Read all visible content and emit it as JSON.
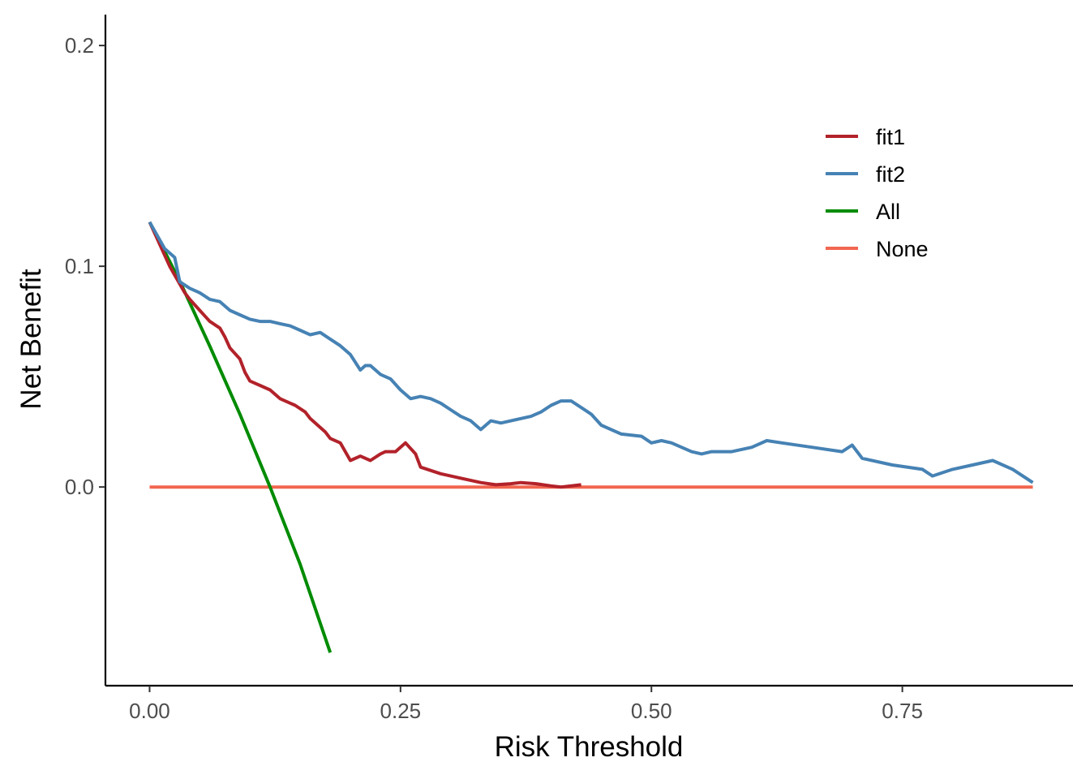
{
  "chart_data": {
    "type": "line",
    "title": "",
    "xlabel": "Risk Threshold",
    "ylabel": "Net Benefit",
    "xlim": [
      -0.044,
      0.92
    ],
    "ylim": [
      -0.09,
      0.214
    ],
    "x_ticks": [
      0.0,
      0.25,
      0.5,
      0.75
    ],
    "x_tick_labels": [
      "0.00",
      "0.25",
      "0.50",
      "0.75"
    ],
    "y_ticks": [
      0.0,
      0.1,
      0.2
    ],
    "y_tick_labels": [
      "0.0",
      "0.1",
      "0.2"
    ],
    "grid": false,
    "legend_position": "top-right",
    "colors": {
      "fit1": "#b2222a",
      "fit2": "#4682b4",
      "All": "#008b00",
      "None": "#f26650"
    },
    "series": [
      {
        "name": "fit1",
        "x": [
          0.0,
          0.02,
          0.035,
          0.04,
          0.05,
          0.06,
          0.07,
          0.075,
          0.08,
          0.09,
          0.095,
          0.1,
          0.11,
          0.12,
          0.13,
          0.14,
          0.145,
          0.155,
          0.16,
          0.175,
          0.18,
          0.19,
          0.2,
          0.21,
          0.22,
          0.23,
          0.235,
          0.245,
          0.255,
          0.265,
          0.27,
          0.29,
          0.31,
          0.33,
          0.345,
          0.36,
          0.37,
          0.385,
          0.4,
          0.41,
          0.43
        ],
        "y": [
          0.12,
          0.1,
          0.088,
          0.085,
          0.08,
          0.075,
          0.072,
          0.068,
          0.063,
          0.058,
          0.052,
          0.048,
          0.046,
          0.044,
          0.04,
          0.038,
          0.037,
          0.034,
          0.031,
          0.025,
          0.022,
          0.02,
          0.012,
          0.014,
          0.012,
          0.015,
          0.016,
          0.016,
          0.02,
          0.015,
          0.009,
          0.006,
          0.004,
          0.002,
          0.001,
          0.0015,
          0.002,
          0.0015,
          0.0005,
          0.0,
          0.001
        ]
      },
      {
        "name": "fit2",
        "x": [
          0.0,
          0.015,
          0.025,
          0.03,
          0.04,
          0.05,
          0.06,
          0.07,
          0.08,
          0.09,
          0.1,
          0.11,
          0.12,
          0.13,
          0.14,
          0.15,
          0.16,
          0.17,
          0.18,
          0.19,
          0.2,
          0.21,
          0.215,
          0.22,
          0.23,
          0.24,
          0.25,
          0.26,
          0.27,
          0.28,
          0.29,
          0.3,
          0.31,
          0.32,
          0.33,
          0.34,
          0.35,
          0.36,
          0.37,
          0.38,
          0.39,
          0.4,
          0.41,
          0.42,
          0.43,
          0.44,
          0.45,
          0.47,
          0.49,
          0.5,
          0.51,
          0.52,
          0.54,
          0.55,
          0.56,
          0.58,
          0.6,
          0.615,
          0.63,
          0.66,
          0.69,
          0.7,
          0.71,
          0.74,
          0.77,
          0.78,
          0.8,
          0.82,
          0.84,
          0.86,
          0.88
        ],
        "y": [
          0.12,
          0.108,
          0.104,
          0.093,
          0.09,
          0.088,
          0.085,
          0.084,
          0.08,
          0.078,
          0.076,
          0.075,
          0.075,
          0.074,
          0.073,
          0.071,
          0.069,
          0.07,
          0.067,
          0.064,
          0.06,
          0.053,
          0.055,
          0.055,
          0.051,
          0.049,
          0.044,
          0.04,
          0.041,
          0.04,
          0.038,
          0.035,
          0.032,
          0.03,
          0.026,
          0.03,
          0.029,
          0.03,
          0.031,
          0.032,
          0.034,
          0.037,
          0.039,
          0.039,
          0.036,
          0.033,
          0.028,
          0.024,
          0.023,
          0.02,
          0.021,
          0.02,
          0.016,
          0.015,
          0.016,
          0.016,
          0.018,
          0.021,
          0.02,
          0.018,
          0.016,
          0.019,
          0.013,
          0.01,
          0.008,
          0.005,
          0.008,
          0.01,
          0.012,
          0.008,
          0.002
        ]
      },
      {
        "name": "All",
        "x": [
          0.0,
          0.03,
          0.06,
          0.09,
          0.12,
          0.15,
          0.18
        ],
        "y": [
          0.12,
          0.0933,
          0.0638,
          0.033,
          0.0,
          -0.035,
          -0.075
        ]
      },
      {
        "name": "None",
        "x": [
          0.0,
          0.88
        ],
        "y": [
          0.0,
          0.0
        ]
      }
    ]
  }
}
